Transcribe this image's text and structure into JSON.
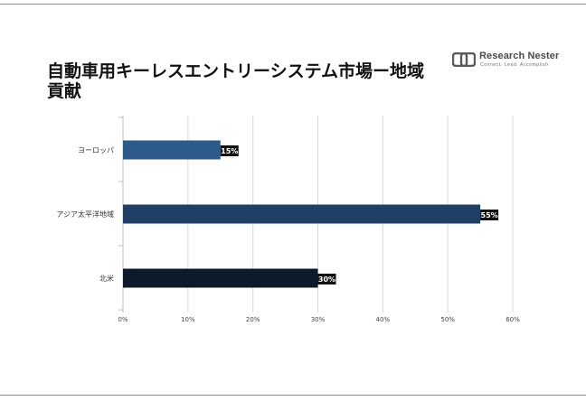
{
  "title": "自動車用キーレスエントリーシステム市場ー地域貢献",
  "logo": {
    "name": "Research Nester",
    "tagline": "Connect. Lead. Accomplish"
  },
  "colors": {
    "bar_europe": "#2c5a8a",
    "bar_apac": "#1f3f66",
    "bar_na": "#0d1a2a",
    "label_bg": "#111111",
    "grid": "#d9d9d9",
    "axis_text": "#444444"
  },
  "chart_data": {
    "type": "bar",
    "orientation": "horizontal",
    "categories": [
      "ヨーロッパ",
      "アジア太平洋地域",
      "北米"
    ],
    "values": [
      15,
      55,
      30
    ],
    "data_labels": [
      "15%",
      "55%",
      "30%"
    ],
    "x_ticks": [
      "0%",
      "10%",
      "20%",
      "30%",
      "40%",
      "50%",
      "60%"
    ],
    "xlim": [
      0,
      60
    ],
    "grid": true,
    "legend": "none"
  }
}
